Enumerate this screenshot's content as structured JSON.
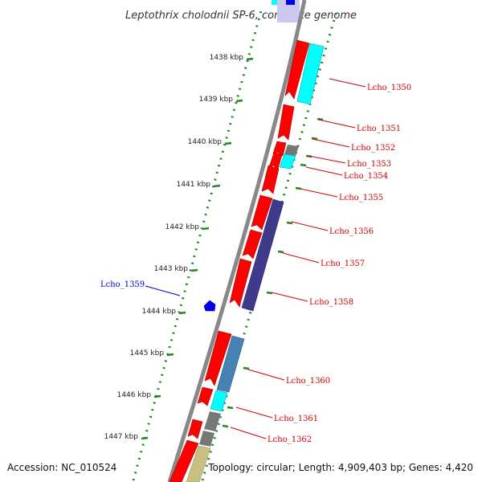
{
  "title": "Leptothrix cholodnii SP-6, complete genome",
  "footer": {
    "accession": "Accession: NC_010524",
    "summary": "Topology: circular; Length: 4,909,403 bp; Genes: 4,420"
  },
  "ticks": [
    "1438 kbp",
    "1439 kbp",
    "1440 kbp",
    "1441 kbp",
    "1442 kbp",
    "1443 kbp",
    "1444 kbp",
    "1445 kbp",
    "1446 kbp",
    "1447 kbp"
  ],
  "gene_labels": [
    {
      "text": "Lcho_1350",
      "strand": "reverse"
    },
    {
      "text": "Lcho_1351",
      "strand": "reverse"
    },
    {
      "text": "Lcho_1352",
      "strand": "reverse"
    },
    {
      "text": "Lcho_1353",
      "strand": "reverse"
    },
    {
      "text": "Lcho_1354",
      "strand": "reverse"
    },
    {
      "text": "Lcho_1355",
      "strand": "reverse"
    },
    {
      "text": "Lcho_1356",
      "strand": "reverse"
    },
    {
      "text": "Lcho_1357",
      "strand": "reverse"
    },
    {
      "text": "Lcho_1358",
      "strand": "reverse"
    },
    {
      "text": "Lcho_1359",
      "strand": "forward"
    },
    {
      "text": "Lcho_1360",
      "strand": "reverse"
    },
    {
      "text": "Lcho_1361",
      "strand": "reverse"
    },
    {
      "text": "Lcho_1362",
      "strand": "reverse"
    }
  ],
  "colors": {
    "cds_reverse": "#ff0000",
    "cds_forward": "#0000ee",
    "label_reverse": "#cc0000",
    "label_forward": "#0000cc",
    "backbone": "#888888",
    "tick_mark": "#228822",
    "cog_cyan": "#00ffff",
    "cog_gray": "#777777",
    "cog_darkblue": "#3f3a8c",
    "cog_steelblue": "#4682b4",
    "cog_khaki": "#c8c080"
  }
}
